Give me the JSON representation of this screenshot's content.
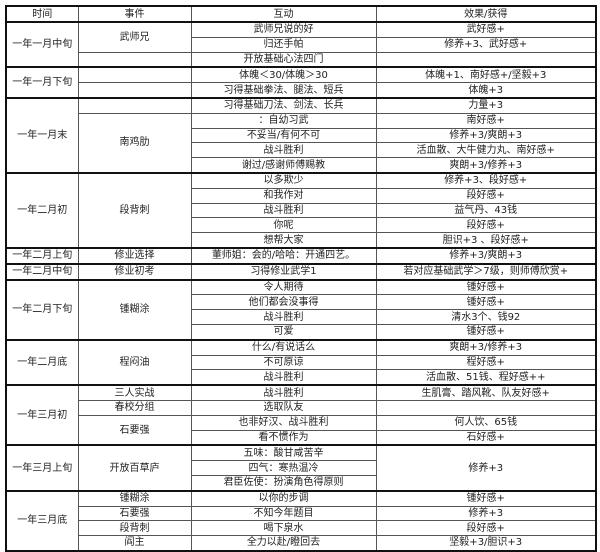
{
  "headers": [
    "时间",
    "事件",
    "互动",
    "效果/获得"
  ],
  "groups": [
    {
      "time": "一年一月中旬",
      "events": [
        {
          "name": "武师兄",
          "interactions": [
            {
              "text": "武师兄说的好",
              "effect": "武好感+"
            },
            {
              "text": "归还手帕",
              "effect": "修养+3、武好感+"
            }
          ]
        },
        {
          "name": "",
          "interactions": [
            {
              "text": "开放基础心法四门",
              "effect": ""
            }
          ]
        }
      ]
    },
    {
      "time": "一年一月下旬",
      "events": [
        {
          "name": "",
          "interactions": [
            {
              "text": "体魄＜30/体魄＞30",
              "effect": "体魄+1、南好感+/坚毅+3"
            }
          ]
        },
        {
          "name": "",
          "interactions": [
            {
              "text": "习得基础拳法、腿法、短兵",
              "effect": "体魄+3"
            }
          ]
        }
      ]
    },
    {
      "time": "一年一月末",
      "events": [
        {
          "name": "",
          "interactions": [
            {
              "text": "习得基础刀法、剑法、长兵",
              "effect": "力量+3"
            }
          ]
        },
        {
          "name": "南鸡肋",
          "interactions": [
            {
              "text": "：自幼习武",
              "effect": "南好感+"
            },
            {
              "text": "不妥当/有何不可",
              "effect": "修养+3/爽朗+3"
            },
            {
              "text": "战斗胜利",
              "effect": "活血散、大牛健力丸、南好感+"
            },
            {
              "text": "谢过/感谢师傅赐教",
              "effect": "爽朗+3/修养+3"
            }
          ]
        }
      ]
    },
    {
      "time": "一年二月初",
      "events": [
        {
          "name": "段背刺",
          "interactions": [
            {
              "text": "以多欺少",
              "effect": "修养+3、段好感+"
            },
            {
              "text": "和我作对",
              "effect": "段好感+"
            },
            {
              "text": "战斗胜利",
              "effect": "益气丹、43钱"
            },
            {
              "text": "你呢",
              "effect": "段好感+"
            },
            {
              "text": "想帮大家",
              "effect": "胆识+3 、段好感+"
            }
          ]
        }
      ]
    },
    {
      "time": "一年二月上旬",
      "events": [
        {
          "name": "修业选择",
          "interactions": [
            {
              "text": "董师姐：会的/哈哈：开通四艺。",
              "effect": "修养+3/爽朗+3"
            }
          ]
        }
      ]
    },
    {
      "time": "一年二月中旬",
      "events": [
        {
          "name": "修业初考",
          "interactions": [
            {
              "text": "习得修业武学1",
              "effect": "若对应基础武学＞7级，则师傅欣赏+"
            }
          ]
        }
      ]
    },
    {
      "time": "一年二月下旬",
      "events": [
        {
          "name": "锺糊涂",
          "interactions": [
            {
              "text": "令人期待",
              "effect": "锺好感+"
            },
            {
              "text": "他们都会没事得",
              "effect": "锺好感+"
            },
            {
              "text": "战斗胜利",
              "effect": "清水3个、钱92"
            },
            {
              "text": "可爱",
              "effect": "锺好感+"
            }
          ]
        }
      ]
    },
    {
      "time": "一年二月底",
      "events": [
        {
          "name": "程闷油",
          "interactions": [
            {
              "text": "什么/有说话么",
              "effect": "爽朗+3/修养+3"
            },
            {
              "text": "不可原谅",
              "effect": "程好感+"
            },
            {
              "text": "战斗胜利",
              "effect": "活血散、51钱、程好感++"
            }
          ]
        }
      ]
    },
    {
      "time": "一年三月初",
      "events": [
        {
          "name": "三人实战",
          "interactions": [
            {
              "text": "战斗胜利",
              "effect": "生肌膏、踏风靴、队友好感+"
            }
          ]
        },
        {
          "name": "春校分组",
          "interactions": [
            {
              "text": "选取队友",
              "effect": ""
            }
          ]
        },
        {
          "name": "石要强",
          "interactions": [
            {
              "text": "也非好汉、战斗胜利",
              "effect": "何人饮、65钱"
            },
            {
              "text": "看不惯作为",
              "effect": "石好感+"
            }
          ]
        }
      ]
    },
    {
      "time": "一年三月上旬",
      "events": [
        {
          "name": "开放百草庐",
          "shared_effect": "修养+3",
          "interactions": [
            {
              "text": "五味：酸甘咸苦辛"
            },
            {
              "text": "四气：寒热温冷"
            },
            {
              "text": "君臣佐使：扮演角色得原则"
            }
          ]
        }
      ]
    },
    {
      "time": "一年三月底",
      "events": [
        {
          "name": "锺糊涂",
          "interactions": [
            {
              "text": "以你的步调",
              "effect": "锺好感+"
            }
          ]
        },
        {
          "name": "石要强",
          "interactions": [
            {
              "text": "不知今年题目",
              "effect": "修养+3"
            }
          ]
        },
        {
          "name": "段背刺",
          "interactions": [
            {
              "text": "喝下泉水",
              "effect": "段好感+"
            }
          ]
        },
        {
          "name": "阎主",
          "interactions": [
            {
              "text": "全力以赴/瞪回去",
              "effect": "坚毅+3/胆识+3"
            }
          ]
        }
      ]
    }
  ]
}
